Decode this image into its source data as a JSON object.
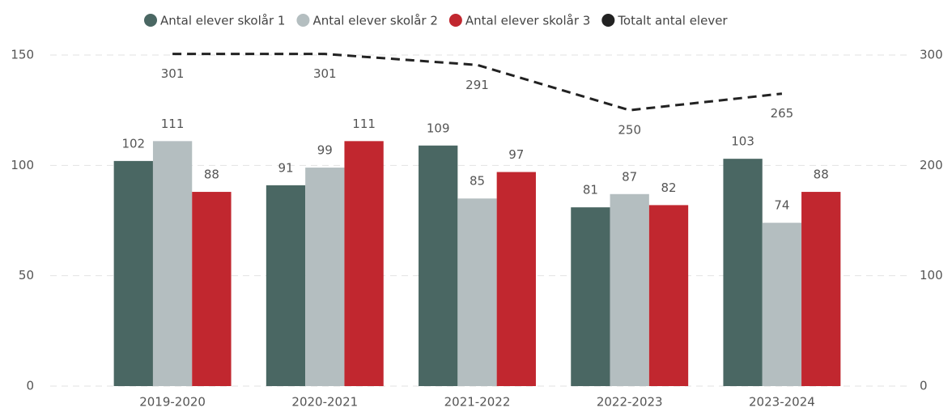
{
  "chart_data": {
    "type": "bar",
    "categories": [
      "2019-2020",
      "2020-2021",
      "2021-2022",
      "2022-2023",
      "2023-2024"
    ],
    "series": [
      {
        "name": "Antal elever skolår 1",
        "color": "#4a6763",
        "values": [
          102,
          91,
          109,
          81,
          103
        ]
      },
      {
        "name": "Antal elever skolår 2",
        "color": "#b4bec0",
        "values": [
          111,
          99,
          85,
          87,
          74
        ]
      },
      {
        "name": "Antal elever skolår 3",
        "color": "#c1272f",
        "values": [
          88,
          111,
          97,
          82,
          88
        ]
      },
      {
        "name": "Totalt antal elever",
        "color": "#222222",
        "type": "line",
        "axis": "y2",
        "values": [
          301,
          301,
          291,
          250,
          265
        ]
      }
    ],
    "ylim": [
      0,
      150
    ],
    "yticks": [
      0,
      50,
      100,
      150
    ],
    "y2lim": [
      0,
      300
    ],
    "y2ticks": [
      0,
      100,
      200,
      300
    ],
    "grid": true,
    "legend": "top"
  }
}
